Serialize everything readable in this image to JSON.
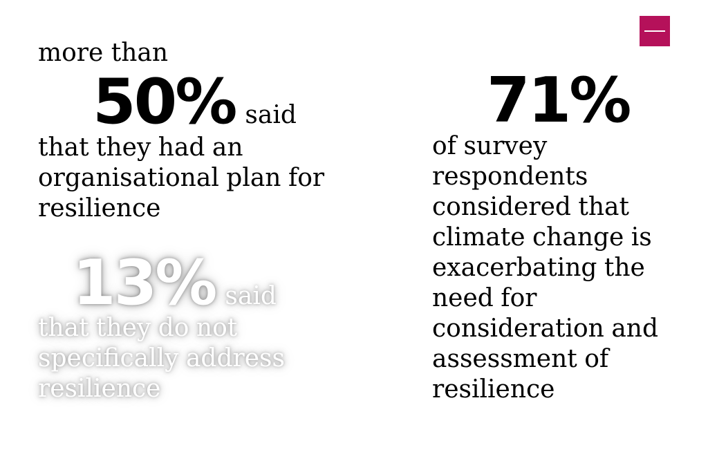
{
  "menu": {
    "icon": "hamburger-menu-icon",
    "color": "#b5115a"
  },
  "stat_a": {
    "intro": "more than",
    "number": "50%",
    "said": "said",
    "text": "that they had an organisational plan for resilience"
  },
  "stat_b": {
    "number": "13%",
    "said": "said",
    "text": "that they do not specifically address resilience"
  },
  "stat_c": {
    "number": "71%",
    "text": "of survey respondents considered that climate change is exacerbating the need for consideration and assessment of resilience"
  }
}
